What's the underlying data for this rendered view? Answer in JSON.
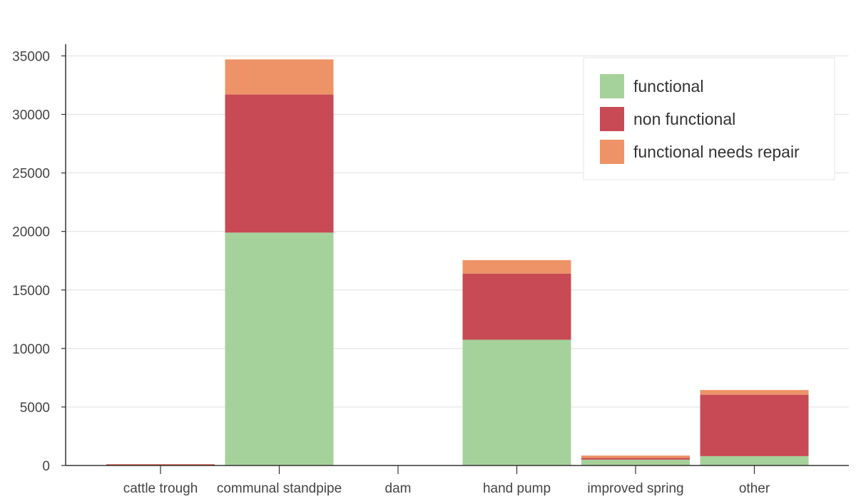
{
  "chart_data": {
    "type": "bar",
    "stacked": true,
    "title": "",
    "xlabel": "",
    "ylabel": "",
    "categories": [
      "cattle trough",
      "communal standpipe",
      "dam",
      "hand pump",
      "improved spring",
      "other"
    ],
    "series": [
      {
        "name": "functional",
        "color": "#a5d29a",
        "values": [
          30,
          19900,
          5,
          10750,
          500,
          800
        ]
      },
      {
        "name": "non functional",
        "color": "#c84a55",
        "values": [
          80,
          11800,
          5,
          5650,
          150,
          5250
        ]
      },
      {
        "name": "functional needs repair",
        "color": "#ee9368",
        "values": [
          10,
          3000,
          2,
          1150,
          200,
          400
        ]
      }
    ],
    "ylim": [
      0,
      36000
    ],
    "yticks": [
      0,
      5000,
      10000,
      15000,
      20000,
      25000,
      30000,
      35000
    ],
    "grid": "horizontal",
    "legend_position": "top-right"
  }
}
